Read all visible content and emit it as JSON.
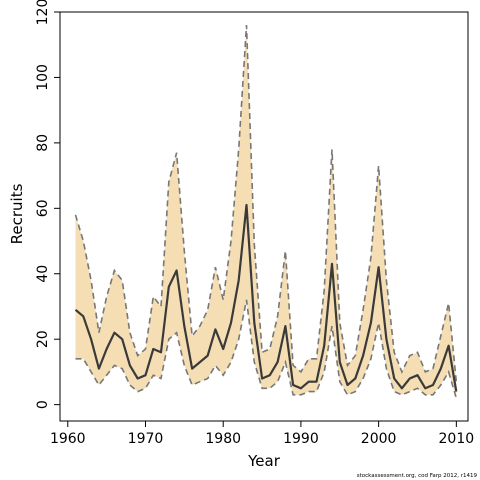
{
  "chart_data": {
    "type": "line",
    "title": "",
    "xlabel": "Year",
    "ylabel": "Recruits",
    "xlim": [
      1959,
      2011.5
    ],
    "ylim": [
      -5,
      120
    ],
    "x_ticks": [
      1960,
      1970,
      1980,
      1990,
      2000,
      2010
    ],
    "y_ticks": [
      0,
      20,
      40,
      60,
      80,
      100,
      120
    ],
    "grid": false,
    "band_color": "#f5deb3",
    "line_color": "#3a3a3a",
    "ci_line_color": "#777777",
    "x": [
      1961,
      1962,
      1963,
      1964,
      1965,
      1966,
      1967,
      1968,
      1969,
      1970,
      1971,
      1972,
      1973,
      1974,
      1975,
      1976,
      1977,
      1978,
      1979,
      1980,
      1981,
      1982,
      1983,
      1984,
      1985,
      1986,
      1987,
      1988,
      1989,
      1990,
      1991,
      1992,
      1993,
      1994,
      1995,
      1996,
      1997,
      1998,
      1999,
      2000,
      2001,
      2002,
      2003,
      2004,
      2005,
      2006,
      2007,
      2008,
      2009,
      2010
    ],
    "series": [
      {
        "values": [
          29,
          27,
          20,
          11,
          17,
          22,
          20,
          12,
          8,
          9,
          17,
          16,
          36,
          41,
          24,
          11,
          13,
          15,
          23,
          17,
          25,
          38,
          61,
          25,
          8,
          9,
          13,
          24,
          6,
          5,
          7,
          7,
          18,
          43,
          13,
          6,
          8,
          15,
          25,
          42,
          20,
          8,
          5,
          8,
          9,
          5,
          6,
          11,
          18,
          4
        ]
      },
      {
        "values": [
          58,
          50,
          38,
          22,
          33,
          41,
          38,
          22,
          15,
          17,
          33,
          30,
          68,
          77,
          47,
          21,
          24,
          29,
          42,
          32,
          50,
          78,
          116,
          49,
          16,
          17,
          27,
          47,
          12,
          10,
          14,
          14,
          35,
          78,
          25,
          12,
          15,
          29,
          45,
          73,
          38,
          16,
          10,
          15,
          16,
          10,
          11,
          21,
          31,
          7
        ]
      },
      {
        "values": [
          14,
          14,
          10,
          6,
          9,
          12,
          11,
          6,
          4,
          5,
          9,
          8,
          20,
          22,
          12,
          6,
          7,
          8,
          12,
          9,
          13,
          20,
          32,
          13,
          5,
          5,
          7,
          13,
          3,
          3,
          4,
          4,
          10,
          24,
          7,
          3,
          4,
          8,
          14,
          25,
          11,
          4,
          3,
          4,
          5,
          3,
          3,
          6,
          10,
          2
        ]
      }
    ],
    "source_note": "stockassessment.org, cod Farp 2012, r1419"
  }
}
